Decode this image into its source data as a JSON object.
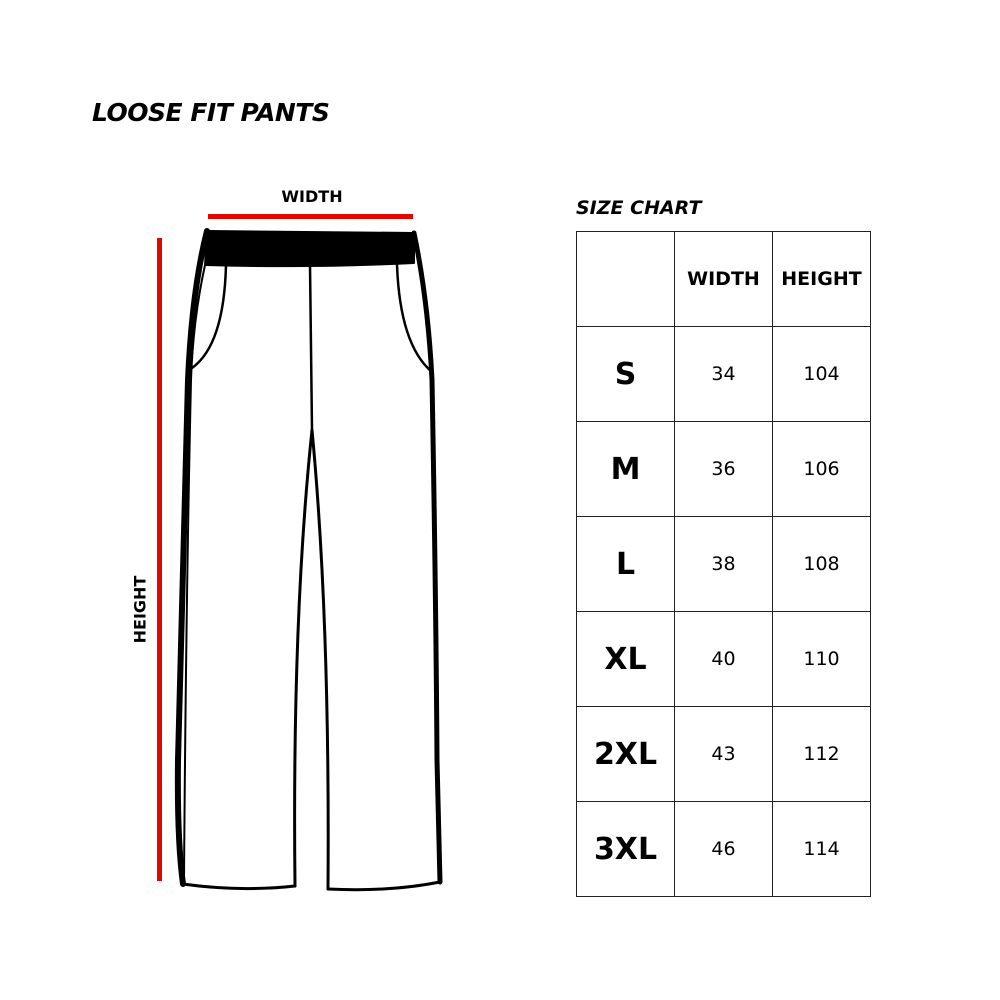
{
  "title": "LOOSE FIT PANTS",
  "diagram": {
    "width_label": "WIDTH",
    "height_label": "HEIGHT",
    "accent_color": "#e10600"
  },
  "size_chart": {
    "title": "SIZE CHART",
    "columns": [
      "",
      "WIDTH",
      "HEIGHT"
    ],
    "rows": [
      {
        "size": "S",
        "width": "34",
        "height": "104"
      },
      {
        "size": "M",
        "width": "36",
        "height": "106"
      },
      {
        "size": "L",
        "width": "38",
        "height": "108"
      },
      {
        "size": "XL",
        "width": "40",
        "height": "110"
      },
      {
        "size": "2XL",
        "width": "43",
        "height": "112"
      },
      {
        "size": "3XL",
        "width": "46",
        "height": "114"
      }
    ]
  }
}
